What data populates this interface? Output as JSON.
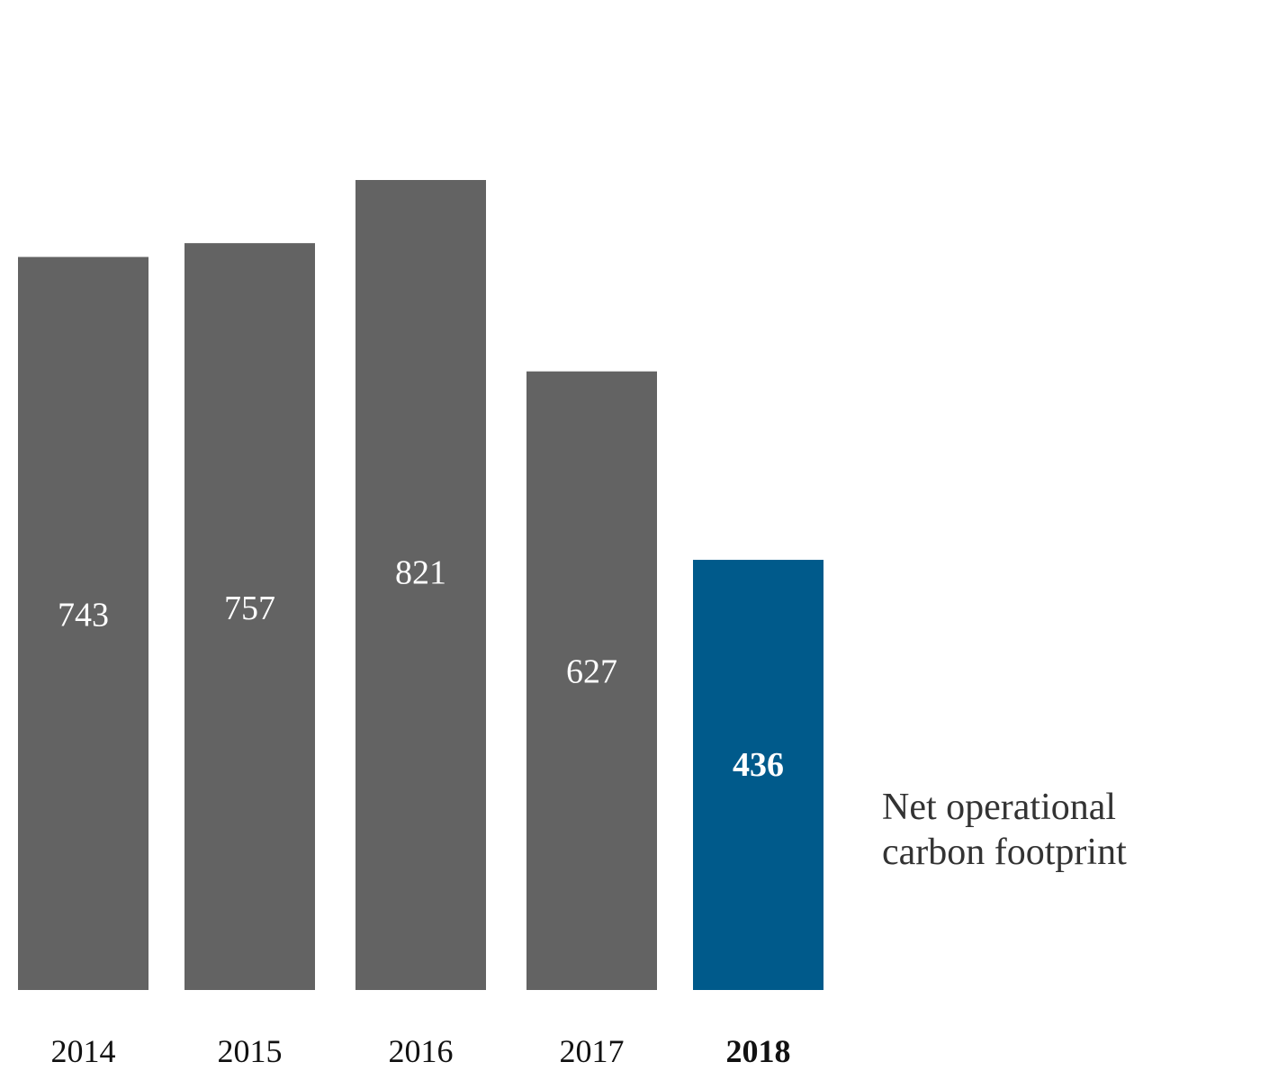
{
  "chart_data": {
    "type": "bar",
    "title": "",
    "xlabel": "",
    "ylabel": "",
    "categories": [
      "2014",
      "2015",
      "2016",
      "2017",
      "2018"
    ],
    "values": [
      743,
      757,
      821,
      627,
      436
    ],
    "highlight_index": 4,
    "series_label": [
      "Net operational",
      "carbon footprint"
    ],
    "colors": {
      "default": "#636363",
      "highlight": "#005A8B",
      "value_text": "#ffffff",
      "tick_text": "#111111"
    },
    "grid": false
  }
}
